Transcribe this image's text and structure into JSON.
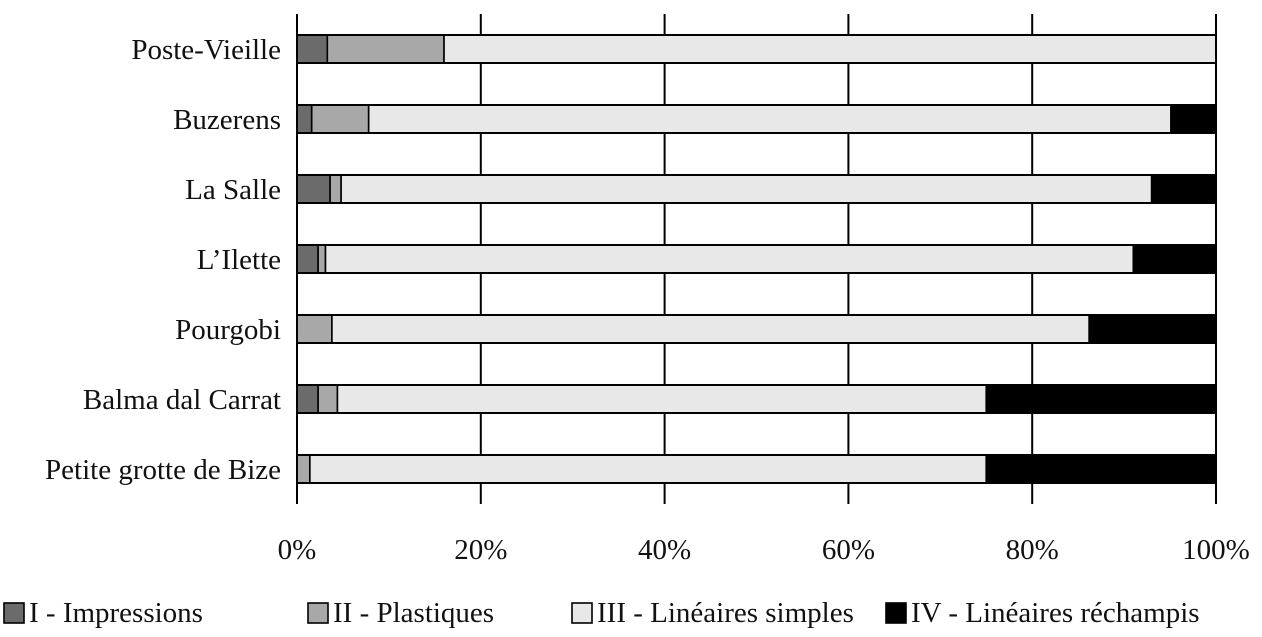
{
  "chart_data": {
    "type": "bar",
    "orientation": "horizontal",
    "stacked": true,
    "percent": true,
    "title": "",
    "xlabel": "",
    "ylabel": "",
    "xlim": [
      0,
      100
    ],
    "x_ticks": [
      "0%",
      "20%",
      "40%",
      "60%",
      "80%",
      "100%"
    ],
    "grid": "vertical",
    "legend_position": "bottom",
    "categories": [
      "Poste-Vieille",
      "Buzerens",
      "La Salle",
      "L’Ilette",
      "Pourgobi",
      "Balma dal Carrat",
      "Petite grotte de Bize"
    ],
    "series": [
      {
        "name": "I - Impressions",
        "color": "#6b6b6b",
        "values": [
          3.3,
          1.6,
          3.6,
          2.3,
          0.0,
          2.3,
          0.0
        ]
      },
      {
        "name": "II - Plastiques",
        "color": "#a8a8a8",
        "values": [
          12.7,
          6.2,
          1.2,
          0.8,
          3.8,
          2.1,
          1.4
        ]
      },
      {
        "name": "III - Linéaires simples",
        "color": "#e8e8e8",
        "values": [
          84.0,
          87.3,
          88.2,
          87.9,
          82.4,
          70.6,
          73.6
        ]
      },
      {
        "name": "IV - Linéaires réchampis",
        "color": "#000000",
        "values": [
          0.0,
          4.9,
          7.0,
          9.0,
          13.8,
          25.0,
          25.0
        ]
      }
    ]
  }
}
